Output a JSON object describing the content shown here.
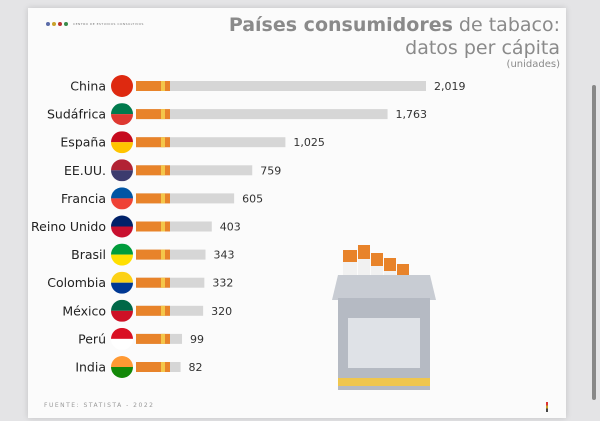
{
  "logo_text": "CENTRO DE ESTUDIOS CONSULTIVOS",
  "source": "FUENTE: STATISTA - 2022",
  "chart_data": {
    "type": "bar",
    "orientation": "horizontal",
    "title_bold": "Países consumidores",
    "title_rest": " de tabaco:",
    "subtitle": "datos per cápita",
    "unit": "(unidades)",
    "categories": [
      "China",
      "Sudáfrica",
      "España",
      "EE.UU.",
      "Francia",
      "Reino Unido",
      "Brasil",
      "Colombia",
      "México",
      "Perú",
      "India"
    ],
    "values": [
      2019,
      1763,
      1025,
      759,
      605,
      403,
      343,
      332,
      320,
      99,
      82
    ],
    "value_labels": [
      "2,019",
      "1,763",
      "1,025",
      "759",
      "605",
      "403",
      "343",
      "332",
      "320",
      "99",
      "82"
    ],
    "flags": [
      "cn",
      "za",
      "es",
      "us",
      "fr",
      "gb",
      "br",
      "co",
      "mx",
      "pe",
      "in"
    ],
    "colors": {
      "filter": "#e8832a",
      "stripe": "#f4c64a",
      "paper": "#d6d6d6"
    }
  }
}
